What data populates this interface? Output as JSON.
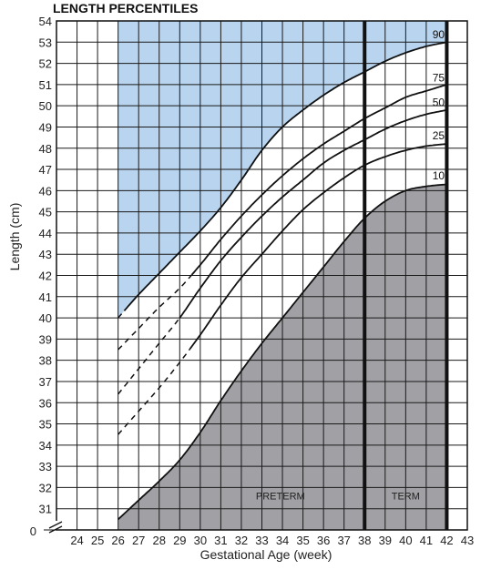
{
  "chart_data": {
    "type": "line",
    "title": "LENGTH PERCENTILES",
    "xlabel": "Gestational Age (week)",
    "ylabel": "Length (cm)",
    "xlim": [
      23,
      43
    ],
    "ylim": [
      30,
      54
    ],
    "x_ticks": [
      24,
      25,
      26,
      27,
      28,
      29,
      30,
      31,
      32,
      33,
      34,
      35,
      36,
      37,
      38,
      39,
      40,
      41,
      42,
      43
    ],
    "y_ticks": [
      31,
      32,
      33,
      34,
      35,
      36,
      37,
      38,
      39,
      40,
      41,
      42,
      43,
      44,
      45,
      46,
      47,
      48,
      49,
      50,
      51,
      52,
      53,
      54
    ],
    "y_zero_label": "0",
    "y_axis_break": true,
    "grid": true,
    "colors": {
      "upper_region": "#b8d4ee",
      "lower_region": "#a0a0a5",
      "lines": "#111111"
    },
    "markers": [
      {
        "x": 38,
        "label": ""
      },
      {
        "x": 42,
        "label": ""
      }
    ],
    "region_labels": [
      {
        "text": "PRETERM",
        "x": 33.9,
        "y": 31.6
      },
      {
        "text": "TERM",
        "x": 40.0,
        "y": 31.6
      }
    ],
    "series": [
      {
        "name": "90",
        "dashed_until": 26.3,
        "points": [
          [
            26,
            40
          ],
          [
            27,
            41.1
          ],
          [
            28,
            42.1
          ],
          [
            29,
            43.1
          ],
          [
            30,
            44.1
          ],
          [
            31,
            45.2
          ],
          [
            32,
            46.5
          ],
          [
            33,
            47.9
          ],
          [
            34,
            49.0
          ],
          [
            35,
            49.8
          ],
          [
            36,
            50.5
          ],
          [
            37,
            51.1
          ],
          [
            38,
            51.6
          ],
          [
            39,
            52.1
          ],
          [
            40,
            52.5
          ],
          [
            41,
            52.8
          ],
          [
            42,
            53.0
          ]
        ]
      },
      {
        "name": "75",
        "dashed_until": 29.6,
        "points": [
          [
            26,
            38.5
          ],
          [
            27,
            39.5
          ],
          [
            28,
            40.5
          ],
          [
            29,
            41.4
          ],
          [
            30,
            42.5
          ],
          [
            31,
            43.7
          ],
          [
            32,
            44.8
          ],
          [
            33,
            45.8
          ],
          [
            34,
            46.7
          ],
          [
            35,
            47.5
          ],
          [
            36,
            48.2
          ],
          [
            37,
            48.8
          ],
          [
            38,
            49.4
          ],
          [
            39,
            49.9
          ],
          [
            40,
            50.4
          ],
          [
            41,
            50.7
          ],
          [
            42,
            51.0
          ]
        ]
      },
      {
        "name": "50",
        "dashed_until": 29.0,
        "points": [
          [
            26,
            36.4
          ],
          [
            27,
            37.6
          ],
          [
            28,
            38.8
          ],
          [
            29,
            40.0
          ],
          [
            30,
            41.4
          ],
          [
            31,
            42.7
          ],
          [
            32,
            43.8
          ],
          [
            33,
            44.8
          ],
          [
            34,
            45.7
          ],
          [
            35,
            46.5
          ],
          [
            36,
            47.3
          ],
          [
            37,
            47.9
          ],
          [
            38,
            48.4
          ],
          [
            39,
            48.9
          ],
          [
            40,
            49.3
          ],
          [
            41,
            49.6
          ],
          [
            42,
            49.8
          ]
        ]
      },
      {
        "name": "25",
        "dashed_until": 29.5,
        "points": [
          [
            26,
            34.5
          ],
          [
            27,
            35.6
          ],
          [
            28,
            36.7
          ],
          [
            29,
            37.9
          ],
          [
            30,
            39.2
          ],
          [
            31,
            40.6
          ],
          [
            32,
            41.9
          ],
          [
            33,
            43.0
          ],
          [
            34,
            44.1
          ],
          [
            35,
            45.1
          ],
          [
            36,
            45.9
          ],
          [
            37,
            46.6
          ],
          [
            38,
            47.2
          ],
          [
            39,
            47.6
          ],
          [
            40,
            47.9
          ],
          [
            41,
            48.1
          ],
          [
            42,
            48.2
          ]
        ]
      },
      {
        "name": "10",
        "dashed_until": 26.0,
        "points": [
          [
            26,
            30.5
          ],
          [
            27,
            31.4
          ],
          [
            28,
            32.3
          ],
          [
            29,
            33.3
          ],
          [
            30,
            34.6
          ],
          [
            31,
            36.1
          ],
          [
            32,
            37.5
          ],
          [
            33,
            38.8
          ],
          [
            34,
            40.0
          ],
          [
            35,
            41.2
          ],
          [
            36,
            42.4
          ],
          [
            37,
            43.6
          ],
          [
            38,
            44.7
          ],
          [
            39,
            45.5
          ],
          [
            40,
            46.0
          ],
          [
            41,
            46.2
          ],
          [
            42,
            46.3
          ]
        ]
      }
    ]
  }
}
